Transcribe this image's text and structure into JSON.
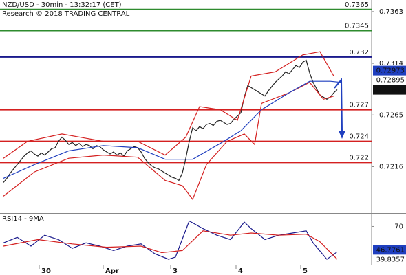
{
  "chart_data": [
    {
      "type": "line",
      "title": "NZD/USD - 30min - 13:32:17 (CET)",
      "subtitle": "Research © 2018 TRADING CENTRAL",
      "xlim": [
        -1,
        107
      ],
      "ylim": [
        0.7172,
        0.7374
      ],
      "yticks": [
        0.7363,
        0.7314,
        0.7265,
        0.7216
      ],
      "x": [
        0,
        1,
        2,
        3,
        4,
        5,
        6,
        7,
        8,
        9,
        10,
        11,
        12,
        13,
        14,
        15,
        16,
        17,
        18,
        19,
        20,
        21,
        22,
        23,
        24,
        25,
        26,
        27,
        28,
        29,
        30,
        31,
        32,
        33,
        34,
        35,
        36,
        37,
        38,
        39,
        40,
        41,
        42,
        43,
        44,
        45,
        46,
        47,
        48,
        49,
        50,
        51,
        52,
        53,
        54,
        55,
        56,
        57,
        58,
        59,
        60,
        61,
        62,
        63,
        64,
        65,
        66,
        67,
        68,
        69,
        70,
        71,
        72,
        73,
        74,
        75,
        76,
        77,
        78,
        79,
        80,
        81,
        82,
        83,
        84,
        85,
        86,
        87,
        88,
        89,
        90,
        91,
        92,
        93,
        94,
        95,
        96,
        97
      ],
      "series": [
        {
          "color": "#222222",
          "values": [
            0.7201,
            0.7205,
            0.721,
            0.7214,
            0.7218,
            0.7222,
            0.7226,
            0.7229,
            0.7231,
            0.7228,
            0.7226,
            0.7229,
            0.7227,
            0.723,
            0.7233,
            0.7234,
            0.724,
            0.7244,
            0.7241,
            0.7237,
            0.7239,
            0.7236,
            0.7238,
            0.7235,
            0.7237,
            0.7236,
            0.7233,
            0.7236,
            0.7235,
            0.7232,
            0.723,
            0.7228,
            0.723,
            0.7227,
            0.7229,
            0.7226,
            0.7231,
            0.7233,
            0.7235,
            0.7234,
            0.723,
            0.7224,
            0.722,
            0.7217,
            0.7215,
            0.7214,
            0.7212,
            0.721,
            0.7208,
            0.7206,
            0.7205,
            0.7203,
            0.721,
            0.7224,
            0.724,
            0.7253,
            0.725,
            0.7254,
            0.7252,
            0.7256,
            0.7257,
            0.7255,
            0.7259,
            0.726,
            0.7258,
            0.7256,
            0.7257,
            0.7261,
            0.7264,
            0.7267,
            0.7282,
            0.7293,
            0.7291,
            0.7289,
            0.7287,
            0.7285,
            0.7283,
            0.7288,
            0.7292,
            0.7296,
            0.7299,
            0.7302,
            0.7306,
            0.7304,
            0.7308,
            0.7312,
            0.731,
            0.7315,
            0.7317,
            0.7305,
            0.7296,
            0.729,
            0.7284,
            0.7282,
            0.728,
            0.7282,
            0.7286,
            0.7289
          ]
        },
        {
          "color": "#d42020",
          "x": [
            0,
            7,
            17,
            29,
            39,
            47,
            53,
            57,
            63,
            68,
            72,
            79,
            87,
            92,
            96
          ],
          "values": [
            0.7224,
            0.724,
            0.7247,
            0.724,
            0.724,
            0.7227,
            0.7244,
            0.7273,
            0.727,
            0.726,
            0.7302,
            0.7306,
            0.7322,
            0.7325,
            0.7302
          ]
        },
        {
          "color": "#d42020",
          "x": [
            0,
            9,
            19,
            29,
            39,
            47,
            52,
            55,
            59,
            65,
            70,
            73,
            75,
            83,
            89,
            93,
            96
          ],
          "values": [
            0.7188,
            0.7211,
            0.7224,
            0.7227,
            0.7225,
            0.7203,
            0.7198,
            0.7185,
            0.7218,
            0.724,
            0.7247,
            0.7237,
            0.7276,
            0.7286,
            0.7296,
            0.728,
            0.7283
          ]
        },
        {
          "color": "#1f3fbf",
          "x": [
            0,
            9,
            19,
            29,
            39,
            47,
            55,
            63,
            69,
            75,
            83,
            89,
            95,
            98
          ],
          "values": [
            0.7205,
            0.7218,
            0.7231,
            0.7236,
            0.7234,
            0.7223,
            0.7223,
            0.7238,
            0.725,
            0.727,
            0.7286,
            0.7297,
            0.7297,
            0.7296
          ]
        }
      ],
      "levels": [
        {
          "value": 0.7365,
          "color": "#2e8b2e"
        },
        {
          "value": 0.7345,
          "color": "#2e8b2e"
        },
        {
          "value": 0.732,
          "color": "#1a1a8c"
        },
        {
          "value": 0.727,
          "color": "#d42020"
        },
        {
          "value": 0.724,
          "color": "#d42020"
        },
        {
          "value": 0.722,
          "color": "#d42020"
        }
      ],
      "price_tags": [
        {
          "value": 0.72973,
          "style": "box",
          "color": "#1f3fbf"
        },
        {
          "value": 0.72895,
          "style": "text",
          "color": "#d42020"
        },
        {
          "value": 0.72889,
          "style": "box",
          "color": "#111111"
        }
      ]
    },
    {
      "type": "line",
      "title": "RSI14 - 9MA",
      "xlim": [
        -1,
        107
      ],
      "ylim": [
        35,
        81
      ],
      "yticks": [
        70
      ],
      "xticks": [
        {
          "value": 10.4,
          "label": "30"
        },
        {
          "value": 29,
          "label": "Apr"
        },
        {
          "value": 48.6,
          "label": "3"
        },
        {
          "value": 67.6,
          "label": "4"
        },
        {
          "value": 86.4,
          "label": "5"
        }
      ],
      "series": [
        {
          "color": "#1a1a8c",
          "x": [
            0,
            4,
            8,
            12,
            16,
            20,
            24,
            28,
            32,
            36,
            40,
            44,
            48,
            50,
            54,
            58,
            62,
            66,
            70,
            72,
            76,
            80,
            84,
            88,
            90,
            94,
            97
          ],
          "values": [
            55,
            60,
            52,
            62,
            58,
            50,
            55,
            52,
            48,
            52,
            54,
            45,
            40,
            42,
            75,
            68,
            62,
            58,
            74,
            68,
            58,
            62,
            64,
            66,
            55,
            40,
            46.8
          ]
        },
        {
          "color": "#d42020",
          "x": [
            0,
            10,
            20,
            30,
            40,
            46,
            52,
            58,
            66,
            72,
            80,
            88,
            92,
            97
          ],
          "values": [
            52,
            58,
            54,
            51,
            52,
            46,
            48,
            66,
            62,
            64,
            62,
            63,
            56,
            40
          ]
        }
      ],
      "price_tags": [
        {
          "value": 46.7761,
          "style": "box",
          "color": "#1f3fbf"
        },
        {
          "value": 39.8357,
          "style": "text",
          "color": "#d42020"
        }
      ]
    }
  ]
}
